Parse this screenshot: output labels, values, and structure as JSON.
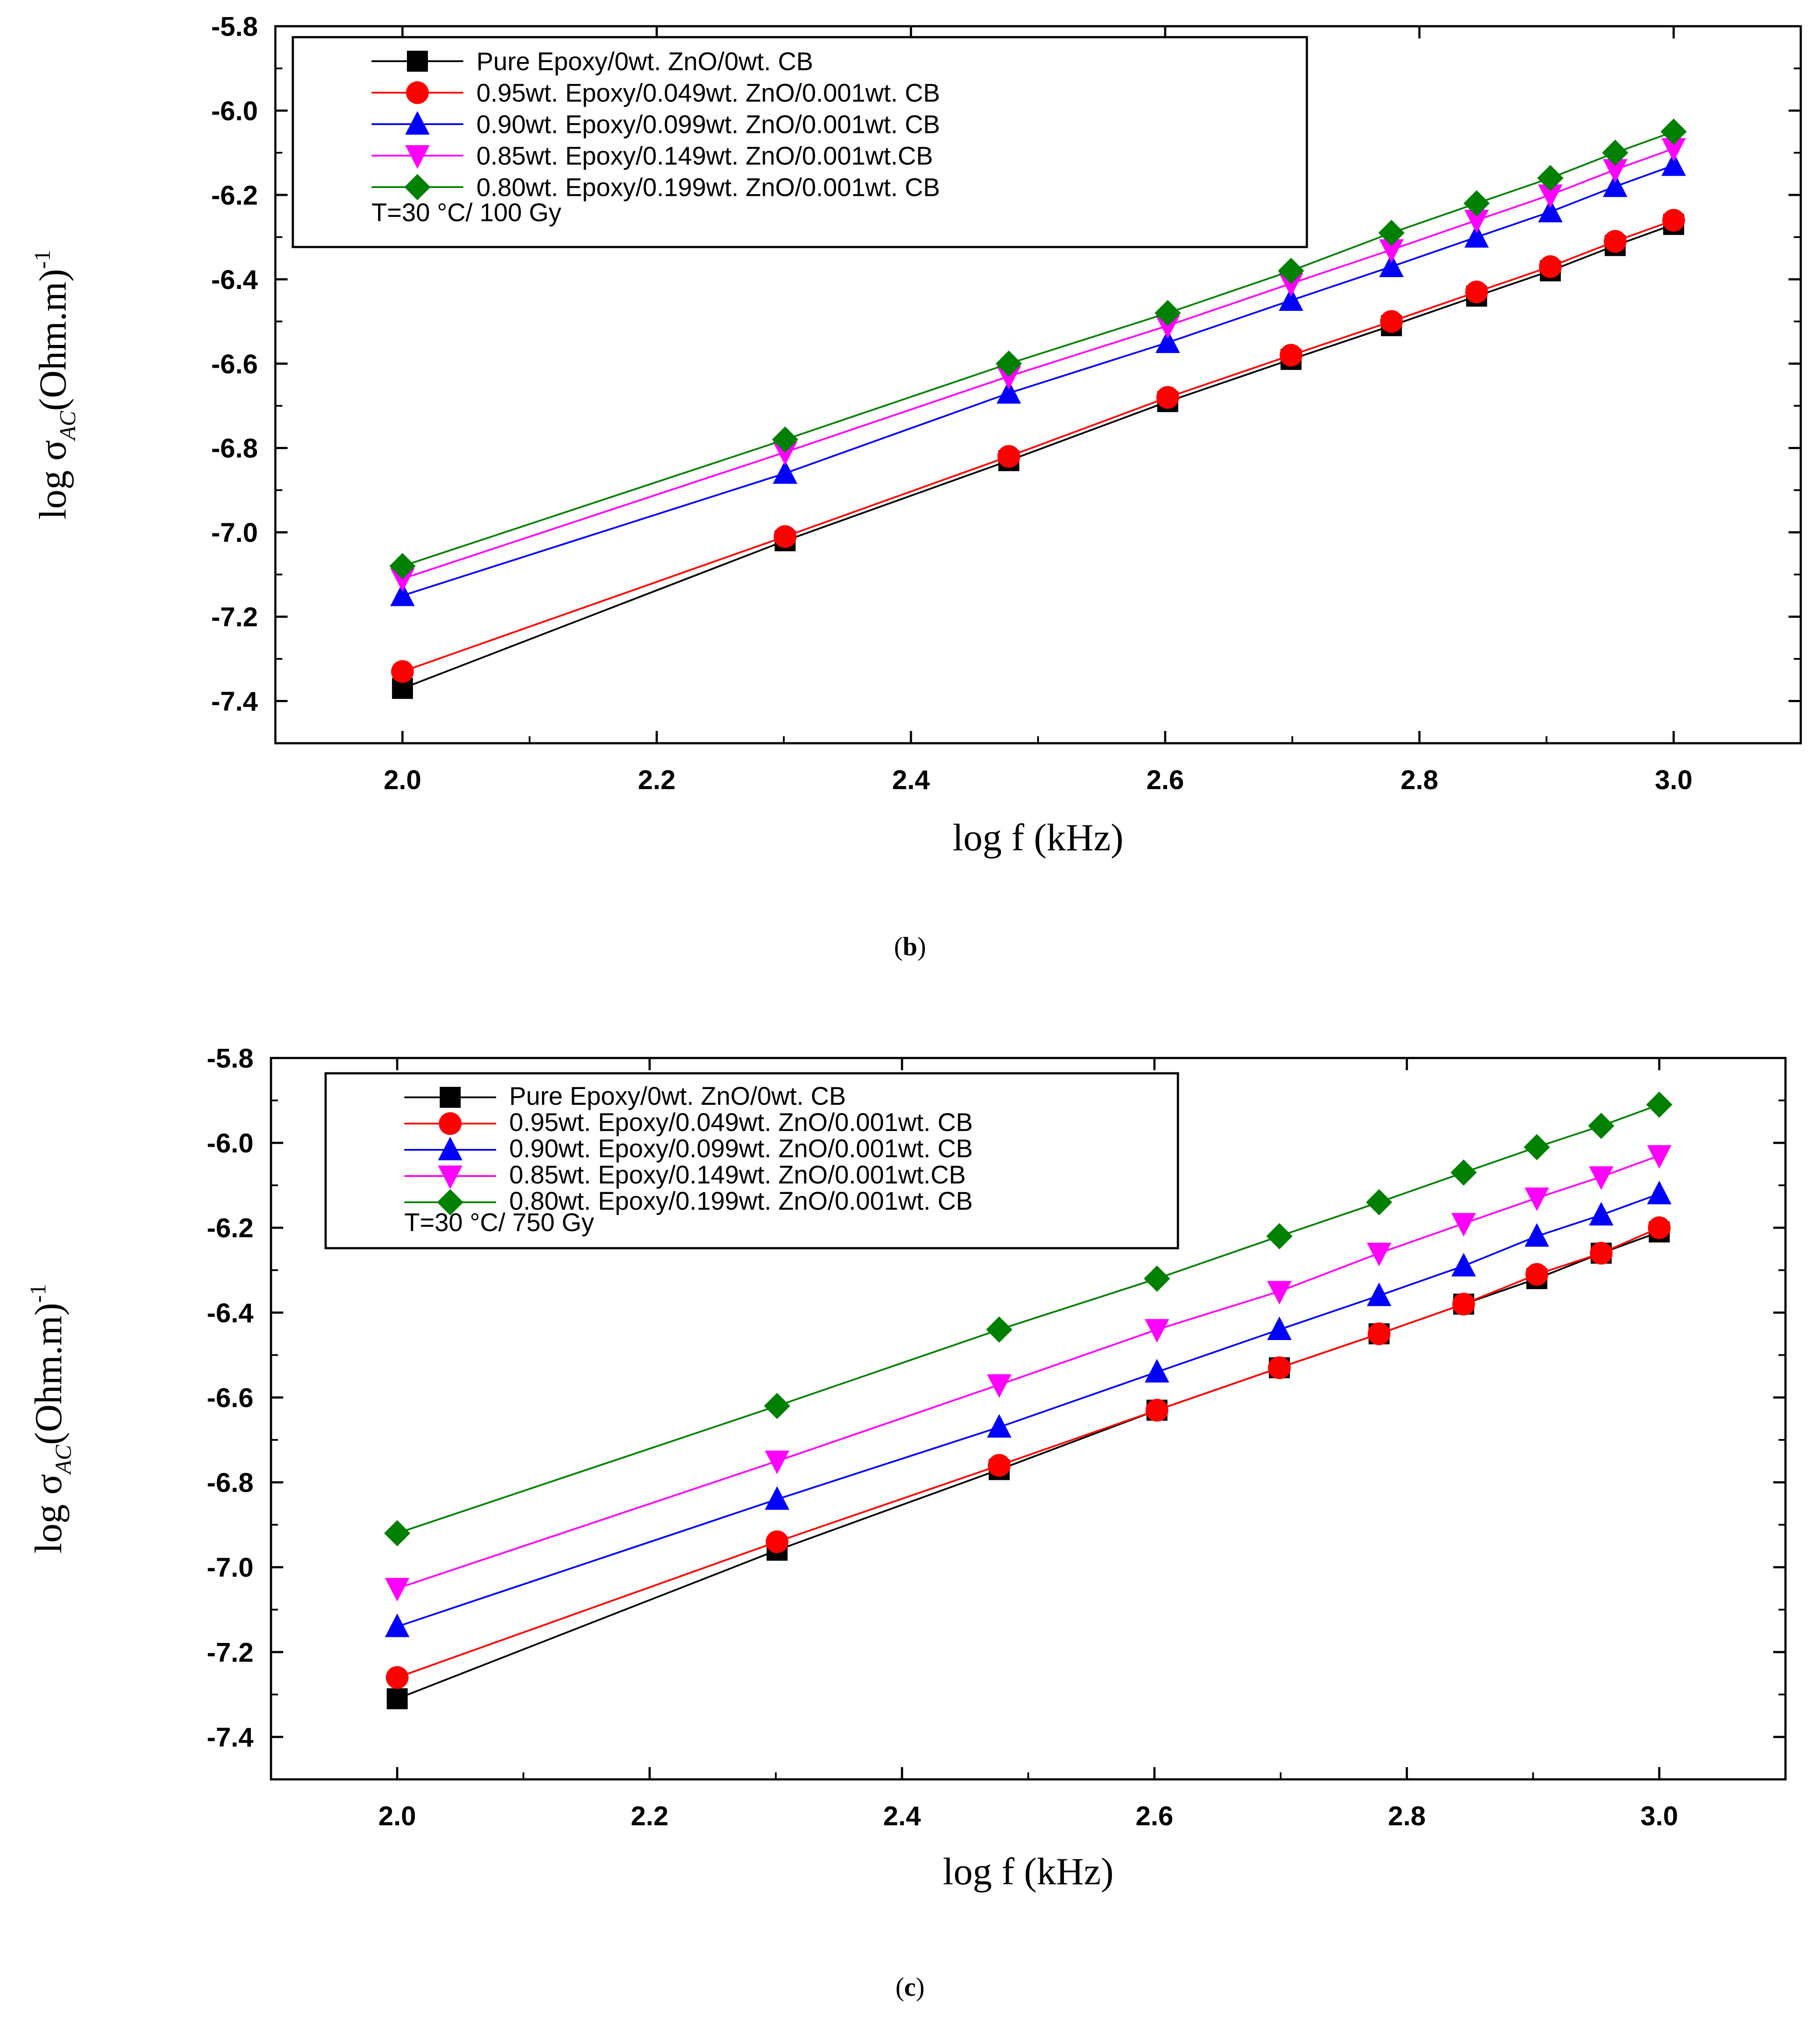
{
  "chart_data": [
    {
      "type": "line",
      "panel": "b",
      "caption_open": "(",
      "caption_letter": "b",
      "caption_close": ")",
      "xlabel": "log f (kHz)",
      "ylabel_main": "log σ",
      "ylabel_sub": "AC",
      "ylabel_unit": "(Ohm.m)",
      "ylabel_sup": "-1",
      "xlim": [
        1.9,
        3.1
      ],
      "ylim": [
        -7.5,
        -5.8
      ],
      "x_ticks": [
        "2.0",
        "2.2",
        "2.4",
        "2.6",
        "2.8",
        "3.0"
      ],
      "y_ticks": [
        "-5.8",
        "-6.0",
        "-6.2",
        "-6.4",
        "-6.6",
        "-6.8",
        "-7.0",
        "-7.2",
        "-7.4"
      ],
      "x": [
        2.0,
        2.301,
        2.477,
        2.602,
        2.699,
        2.778,
        2.845,
        2.903,
        2.954,
        3.0
      ],
      "legend_note": "T=30 °C/ 100 Gy",
      "series": [
        {
          "name": "Pure Epoxy/0wt. ZnO/0wt. CB",
          "color": "#000000",
          "marker": "square",
          "values": [
            -7.37,
            -7.02,
            -6.83,
            -6.69,
            -6.59,
            -6.51,
            -6.44,
            -6.38,
            -6.32,
            -6.27
          ]
        },
        {
          "name": "0.95wt. Epoxy/0.049wt. ZnO/0.001wt. CB",
          "color": "#ff0000",
          "marker": "circle",
          "values": [
            -7.33,
            -7.01,
            -6.82,
            -6.68,
            -6.58,
            -6.5,
            -6.43,
            -6.37,
            -6.31,
            -6.26
          ]
        },
        {
          "name": "0.90wt. Epoxy/0.099wt. ZnO/0.001wt. CB",
          "color": "#0000ff",
          "marker": "triangle-up",
          "values": [
            -7.15,
            -6.86,
            -6.67,
            -6.55,
            -6.45,
            -6.37,
            -6.3,
            -6.24,
            -6.18,
            -6.13
          ]
        },
        {
          "name": "0.85wt. Epoxy/0.149wt. ZnO/0.001wt.CB",
          "color": "#ff00ff",
          "marker": "triangle-down",
          "values": [
            -7.11,
            -6.81,
            -6.63,
            -6.51,
            -6.41,
            -6.33,
            -6.26,
            -6.2,
            -6.14,
            -6.09
          ]
        },
        {
          "name": "0.80wt. Epoxy/0.199wt. ZnO/0.001wt. CB",
          "color": "#008000",
          "marker": "diamond",
          "values": [
            -7.08,
            -6.78,
            -6.6,
            -6.48,
            -6.38,
            -6.29,
            -6.22,
            -6.16,
            -6.1,
            -6.05
          ]
        }
      ]
    },
    {
      "type": "line",
      "panel": "c",
      "caption_open": "(",
      "caption_letter": "c",
      "caption_close": ")",
      "xlabel": "log f (kHz)",
      "ylabel_main": "log σ",
      "ylabel_sub": "AC",
      "ylabel_unit": "(Ohm.m)",
      "ylabel_sup": "-1",
      "xlim": [
        1.9,
        3.1
      ],
      "ylim": [
        -7.5,
        -5.8
      ],
      "x_ticks": [
        "2.0",
        "2.2",
        "2.4",
        "2.6",
        "2.8",
        "3.0"
      ],
      "y_ticks": [
        "-5.8",
        "-6.0",
        "-6.2",
        "-6.4",
        "-6.6",
        "-6.8",
        "-7.0",
        "-7.2",
        "-7.4"
      ],
      "x": [
        2.0,
        2.301,
        2.477,
        2.602,
        2.699,
        2.778,
        2.845,
        2.903,
        2.954,
        3.0
      ],
      "legend_note": "T=30 °C/ 750 Gy",
      "series": [
        {
          "name": "Pure Epoxy/0wt. ZnO/0wt. CB",
          "color": "#000000",
          "marker": "square",
          "values": [
            -7.31,
            -6.96,
            -6.77,
            -6.63,
            -6.53,
            -6.45,
            -6.38,
            -6.32,
            -6.26,
            -6.21
          ]
        },
        {
          "name": "0.95wt. Epoxy/0.049wt. ZnO/0.001wt. CB",
          "color": "#ff0000",
          "marker": "circle",
          "values": [
            -7.26,
            -6.94,
            -6.76,
            -6.63,
            -6.53,
            -6.45,
            -6.38,
            -6.31,
            -6.26,
            -6.2
          ]
        },
        {
          "name": "0.90wt. Epoxy/0.099wt. ZnO/0.001wt. CB",
          "color": "#0000ff",
          "marker": "triangle-up",
          "values": [
            -7.14,
            -6.84,
            -6.67,
            -6.54,
            -6.44,
            -6.36,
            -6.29,
            -6.22,
            -6.17,
            -6.12
          ]
        },
        {
          "name": "0.85wt. Epoxy/0.149wt. ZnO/0.001wt.CB",
          "color": "#ff00ff",
          "marker": "triangle-down",
          "values": [
            -7.05,
            -6.75,
            -6.57,
            -6.44,
            -6.35,
            -6.26,
            -6.19,
            -6.13,
            -6.08,
            -6.03
          ]
        },
        {
          "name": "0.80wt. Epoxy/0.199wt. ZnO/0.001wt. CB",
          "color": "#008000",
          "marker": "diamond",
          "values": [
            -6.92,
            -6.62,
            -6.44,
            -6.32,
            -6.22,
            -6.14,
            -6.07,
            -6.01,
            -5.96,
            -5.91
          ]
        }
      ]
    }
  ]
}
